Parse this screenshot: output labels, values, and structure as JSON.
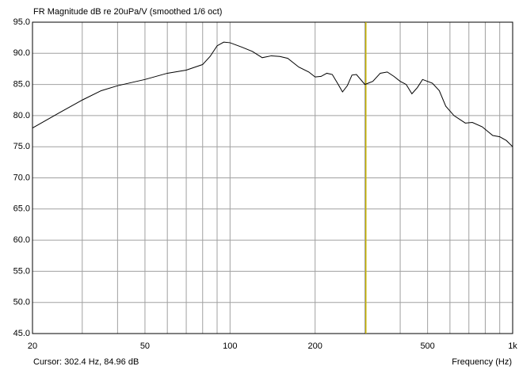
{
  "chart_data": {
    "type": "line",
    "title": "FR Magnitude dB re 20uPa/V (smoothed 1/6 oct)",
    "x_label": "Frequency (Hz)",
    "log_x": true,
    "grid": true,
    "x": [
      20,
      25,
      30,
      35,
      40,
      50,
      60,
      70,
      80,
      85,
      90,
      95,
      100,
      110,
      120,
      130,
      140,
      150,
      160,
      175,
      190,
      200,
      210,
      220,
      230,
      240,
      250,
      260,
      270,
      280,
      300,
      320,
      340,
      360,
      380,
      400,
      420,
      440,
      460,
      480,
      520,
      550,
      580,
      620,
      680,
      720,
      780,
      850,
      900,
      950,
      1000
    ],
    "series": [
      {
        "color": "#000000",
        "values": [
          78,
          80.5,
          82.5,
          84,
          84.8,
          85.8,
          86.8,
          87.3,
          88.2,
          89.5,
          91.2,
          91.8,
          91.7,
          91,
          90.3,
          89.3,
          89.6,
          89.5,
          89.2,
          87.8,
          87,
          86.2,
          86.3,
          86.8,
          86.6,
          85.2,
          83.8,
          84.8,
          86.5,
          86.6,
          85,
          85.5,
          86.8,
          87,
          86.3,
          85.5,
          85,
          83.5,
          84.5,
          85.8,
          85.2,
          84,
          81.5,
          80,
          78.8,
          78.9,
          78.2,
          76.8,
          76.6,
          76,
          75
        ]
      }
    ],
    "xlim": [
      20,
      1000
    ],
    "xticks": [
      20,
      50,
      100,
      200,
      500,
      {
        "value": 1000,
        "label": "1k"
      }
    ],
    "xgrid": [
      30,
      40,
      60,
      70,
      80,
      90,
      300,
      400,
      600,
      700,
      800,
      900
    ],
    "ylim": [
      45,
      95
    ],
    "yticks": [
      {
        "value": 45,
        "label": "45.0"
      },
      {
        "value": 50,
        "label": "50.0"
      },
      {
        "value": 55,
        "label": "55.0"
      },
      {
        "value": 60,
        "label": "60.0"
      },
      {
        "value": 65,
        "label": "65.0"
      },
      {
        "value": 70,
        "label": "70.0"
      },
      {
        "value": 75,
        "label": "75.0"
      },
      {
        "value": 80,
        "label": "80.0"
      },
      {
        "value": 85,
        "label": "85.0"
      },
      {
        "value": 90,
        "label": "90.0"
      },
      {
        "value": 95,
        "label": "95.0"
      }
    ],
    "cursor": {
      "x": 302.4,
      "color": "#c8b400",
      "text": "Cursor: 302.4 Hz, 84.96 dB"
    }
  }
}
